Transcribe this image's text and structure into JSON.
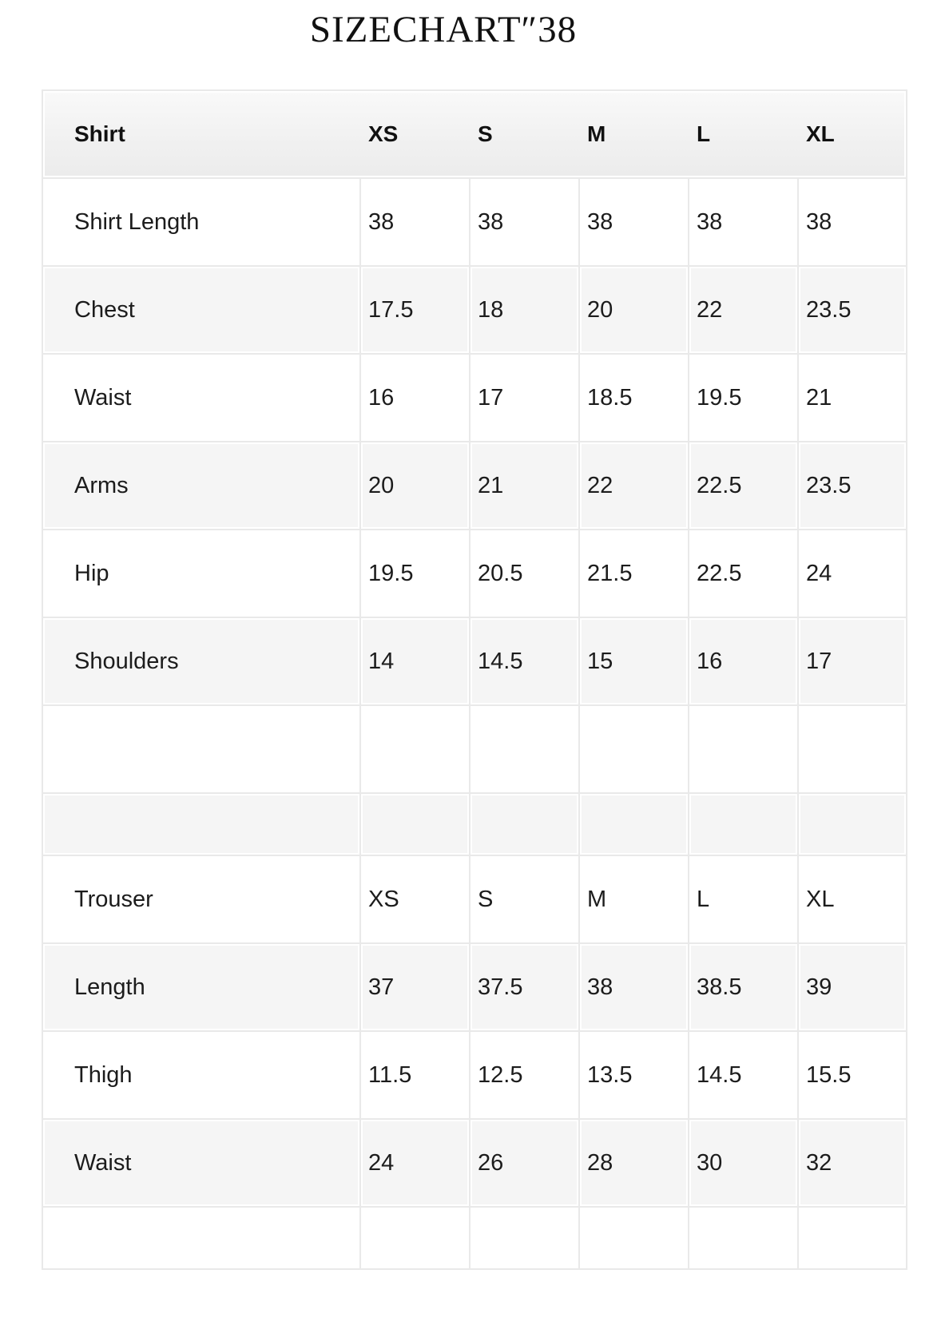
{
  "title": "SIZECHART″38",
  "table": {
    "header": [
      "Shirt",
      "XS",
      "S",
      "M",
      "L",
      "XL"
    ],
    "rows": [
      {
        "label": "Shirt Length",
        "values": [
          "38",
          "38",
          "38",
          "38",
          "38"
        ]
      },
      {
        "label": "Chest",
        "values": [
          "17.5",
          "18",
          "20",
          "22",
          "23.5"
        ]
      },
      {
        "label": "Waist",
        "values": [
          "16",
          "17",
          "18.5",
          "19.5",
          "21"
        ]
      },
      {
        "label": "Arms",
        "values": [
          "20",
          "21",
          "22",
          "22.5",
          "23.5"
        ]
      },
      {
        "label": "Hip",
        "values": [
          "19.5",
          "20.5",
          "21.5",
          "22.5",
          "24"
        ]
      },
      {
        "label": "Shoulders",
        "values": [
          "14",
          "14.5",
          "15",
          "16",
          "17"
        ]
      },
      {
        "label": "",
        "values": [
          "",
          "",
          "",
          "",
          ""
        ]
      },
      {
        "label": "",
        "values": [
          "",
          "",
          "",
          "",
          ""
        ]
      },
      {
        "label": "Trouser",
        "values": [
          "XS",
          "S",
          "M",
          "L",
          "XL"
        ]
      },
      {
        "label": "Length",
        "values": [
          "37",
          "37.5",
          "38",
          "38.5",
          "39"
        ]
      },
      {
        "label": "Thigh",
        "values": [
          "11.5",
          "12.5",
          "13.5",
          "14.5",
          "15.5"
        ]
      },
      {
        "label": "Waist",
        "values": [
          "24",
          "26",
          "28",
          "30",
          "32"
        ]
      },
      {
        "label": "",
        "values": [
          "",
          "",
          "",
          "",
          ""
        ]
      }
    ],
    "colors": {
      "grid_line": "#e9e9e9",
      "row_shaded": "#f5f5f5",
      "row_plain": "#ffffff",
      "text": "#1c1c1c"
    }
  }
}
